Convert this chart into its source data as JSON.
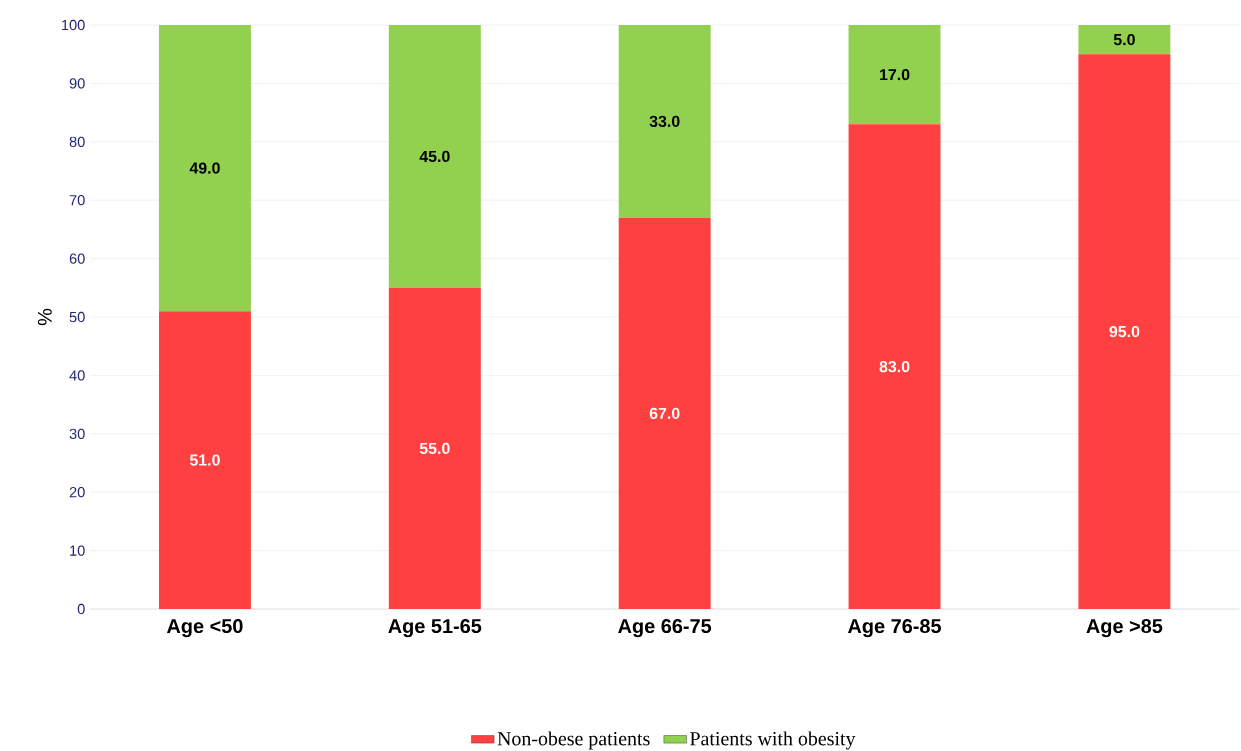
{
  "chart_data": {
    "type": "bar",
    "stacked": true,
    "ylabel": "%",
    "categories": [
      "Age <50",
      "Age 51-65",
      "Age 66-75",
      "Age 76-85",
      "Age >85"
    ],
    "series": [
      {
        "name": "Non-obese patients",
        "color": "#ff4040",
        "values": [
          51,
          55,
          67,
          83,
          95
        ],
        "value_labels": [
          "51.0",
          "55.0",
          "67.0",
          "83.0",
          "95.0"
        ]
      },
      {
        "name": "Patients with obesity",
        "color": "#92d050",
        "values": [
          49,
          45,
          33,
          17,
          5
        ],
        "value_labels": [
          "49.0",
          "45.0",
          "33.0",
          "17.0",
          "5.0"
        ]
      }
    ],
    "ylim": [
      0,
      100
    ],
    "yticks": [
      0,
      10,
      20,
      30,
      40,
      50,
      60,
      70,
      80,
      90,
      100
    ],
    "grid": "y",
    "legend": "bottom"
  }
}
